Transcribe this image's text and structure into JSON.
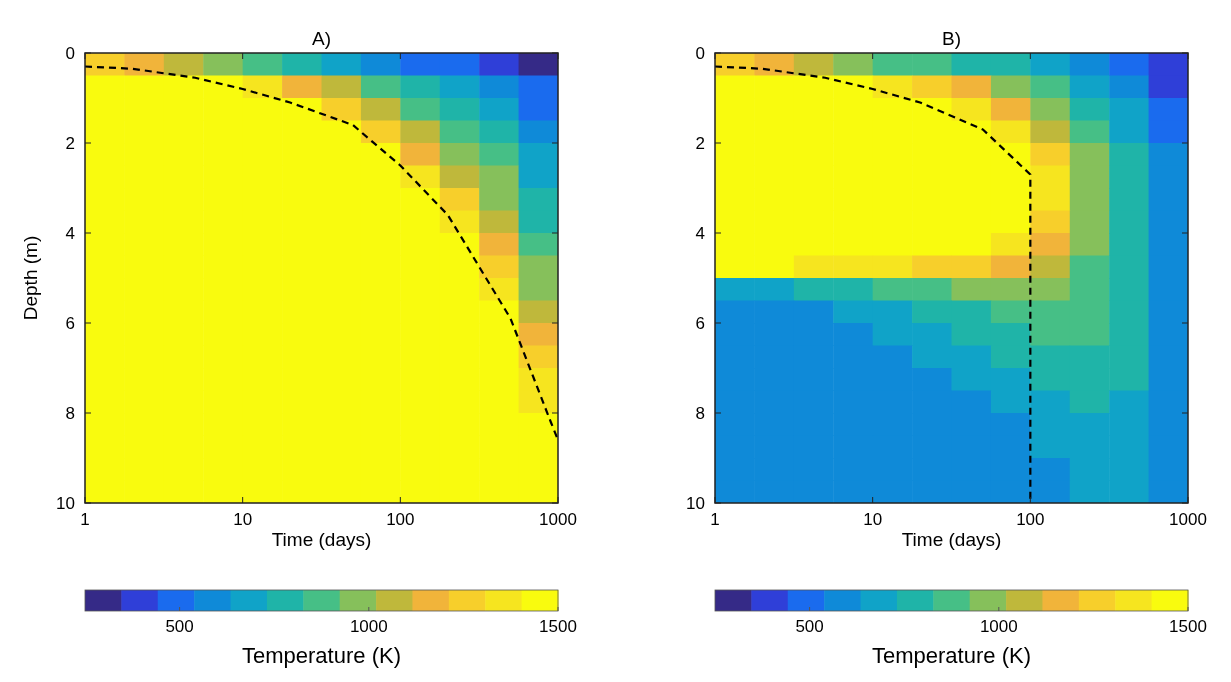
{
  "chart_data": [
    {
      "type": "heatmap",
      "title": "A)",
      "xlabel": "Time (days)",
      "ylabel": "Depth (m)",
      "clabel": "Temperature (K)",
      "log": "x",
      "xlim": [
        1,
        1000
      ],
      "xticks": [
        1,
        10,
        100,
        1000
      ],
      "ylim": [
        10,
        0
      ],
      "yticks": [
        0,
        2,
        4,
        6,
        8,
        10
      ],
      "clim": [
        250,
        1500
      ],
      "cticks": [
        500,
        1000,
        1500
      ],
      "line_style": "dashed",
      "marker": "none",
      "cells": [
        [
          1300,
          1200,
          1100,
          1000,
          900,
          800,
          700,
          600,
          500,
          450,
          400,
          300
        ],
        [
          1500,
          1500,
          1500,
          1450,
          1350,
          1200,
          1050,
          900,
          750,
          650,
          550,
          450
        ],
        [
          1500,
          1500,
          1500,
          1500,
          1500,
          1450,
          1300,
          1100,
          900,
          800,
          650,
          500
        ],
        [
          1500,
          1500,
          1500,
          1500,
          1500,
          1500,
          1450,
          1300,
          1050,
          900,
          750,
          600
        ],
        [
          1500,
          1500,
          1500,
          1500,
          1500,
          1500,
          1500,
          1450,
          1200,
          1000,
          850,
          650
        ],
        [
          1500,
          1500,
          1500,
          1500,
          1500,
          1500,
          1500,
          1500,
          1400,
          1100,
          950,
          700
        ],
        [
          1500,
          1500,
          1500,
          1500,
          1500,
          1500,
          1500,
          1500,
          1450,
          1250,
          1000,
          750
        ],
        [
          1500,
          1500,
          1500,
          1500,
          1500,
          1500,
          1500,
          1500,
          1500,
          1400,
          1100,
          800
        ],
        [
          1500,
          1500,
          1500,
          1500,
          1500,
          1500,
          1500,
          1500,
          1500,
          1450,
          1200,
          850
        ],
        [
          1500,
          1500,
          1500,
          1500,
          1500,
          1500,
          1500,
          1500,
          1500,
          1500,
          1300,
          950
        ],
        [
          1500,
          1500,
          1500,
          1500,
          1500,
          1500,
          1500,
          1500,
          1500,
          1500,
          1400,
          1000
        ],
        [
          1500,
          1500,
          1500,
          1500,
          1500,
          1500,
          1500,
          1500,
          1500,
          1500,
          1450,
          1100
        ],
        [
          1500,
          1500,
          1500,
          1500,
          1500,
          1500,
          1500,
          1500,
          1500,
          1500,
          1500,
          1200
        ],
        [
          1500,
          1500,
          1500,
          1500,
          1500,
          1500,
          1500,
          1500,
          1500,
          1500,
          1500,
          1300
        ],
        [
          1500,
          1500,
          1500,
          1500,
          1500,
          1500,
          1500,
          1500,
          1500,
          1500,
          1500,
          1350
        ],
        [
          1500,
          1500,
          1500,
          1500,
          1500,
          1500,
          1500,
          1500,
          1500,
          1500,
          1500,
          1400
        ],
        [
          1500,
          1500,
          1500,
          1500,
          1500,
          1500,
          1500,
          1500,
          1500,
          1500,
          1500,
          1450
        ],
        [
          1500,
          1500,
          1500,
          1500,
          1500,
          1500,
          1500,
          1500,
          1500,
          1500,
          1500,
          1500
        ],
        [
          1500,
          1500,
          1500,
          1500,
          1500,
          1500,
          1500,
          1500,
          1500,
          1500,
          1500,
          1500
        ],
        [
          1500,
          1500,
          1500,
          1500,
          1500,
          1500,
          1500,
          1500,
          1500,
          1500,
          1500,
          1500
        ]
      ],
      "series": [
        {
          "type": "line",
          "color": "#000000",
          "x": [
            1,
            2,
            5,
            10,
            20,
            50,
            100,
            200,
            500,
            900,
            1000
          ],
          "values": [
            0.3,
            0.35,
            0.55,
            0.8,
            1.1,
            1.6,
            2.5,
            3.6,
            5.9,
            8.2,
            8.6
          ]
        }
      ]
    },
    {
      "type": "heatmap",
      "title": "B)",
      "xlabel": "Time (days)",
      "clabel": "Temperature (K)",
      "log": "x",
      "xlim": [
        1,
        1000
      ],
      "xticks": [
        1,
        10,
        100,
        1000
      ],
      "ylim": [
        10,
        0
      ],
      "yticks": [
        0,
        2,
        4,
        6,
        8,
        10
      ],
      "clim": [
        250,
        1500
      ],
      "cticks": [
        500,
        1000,
        1500
      ],
      "line_style": "dashed",
      "marker": "none",
      "cells": [
        [
          1300,
          1200,
          1100,
          1000,
          900,
          850,
          800,
          750,
          650,
          550,
          450,
          350
        ],
        [
          1500,
          1500,
          1500,
          1450,
          1350,
          1250,
          1150,
          1000,
          850,
          700,
          550,
          400
        ],
        [
          1500,
          1500,
          1500,
          1500,
          1500,
          1450,
          1350,
          1200,
          1000,
          800,
          650,
          450
        ],
        [
          1500,
          1500,
          1500,
          1500,
          1500,
          1500,
          1450,
          1350,
          1100,
          850,
          700,
          500
        ],
        [
          1500,
          1500,
          1500,
          1500,
          1500,
          1500,
          1500,
          1450,
          1250,
          950,
          750,
          550
        ],
        [
          1500,
          1500,
          1500,
          1500,
          1500,
          1500,
          1500,
          1500,
          1350,
          1000,
          750,
          550
        ],
        [
          1500,
          1500,
          1500,
          1500,
          1500,
          1500,
          1500,
          1500,
          1350,
          1000,
          800,
          600
        ],
        [
          1500,
          1500,
          1500,
          1500,
          1500,
          1500,
          1500,
          1500,
          1300,
          1000,
          800,
          600
        ],
        [
          1500,
          1500,
          1500,
          1500,
          1500,
          1500,
          1450,
          1400,
          1200,
          950,
          800,
          600
        ],
        [
          1450,
          1450,
          1400,
          1400,
          1350,
          1300,
          1250,
          1200,
          1100,
          900,
          750,
          600
        ],
        [
          700,
          700,
          750,
          800,
          850,
          900,
          950,
          950,
          950,
          850,
          750,
          600
        ],
        [
          550,
          550,
          600,
          650,
          700,
          750,
          800,
          850,
          900,
          850,
          750,
          600
        ],
        [
          550,
          550,
          550,
          600,
          650,
          700,
          750,
          800,
          850,
          850,
          750,
          600
        ],
        [
          550,
          550,
          550,
          550,
          600,
          650,
          700,
          750,
          800,
          800,
          750,
          600
        ],
        [
          550,
          550,
          550,
          550,
          550,
          600,
          650,
          700,
          750,
          800,
          750,
          600
        ],
        [
          550,
          550,
          550,
          550,
          550,
          550,
          600,
          650,
          700,
          750,
          700,
          600
        ],
        [
          550,
          550,
          550,
          550,
          550,
          550,
          550,
          600,
          650,
          700,
          700,
          600
        ],
        [
          550,
          550,
          550,
          550,
          550,
          550,
          550,
          600,
          650,
          650,
          650,
          600
        ],
        [
          550,
          550,
          550,
          550,
          550,
          550,
          550,
          550,
          600,
          650,
          650,
          600
        ],
        [
          550,
          550,
          550,
          550,
          550,
          550,
          550,
          550,
          600,
          650,
          650,
          600
        ]
      ],
      "series": [
        {
          "type": "line",
          "color": "#000000",
          "x": [
            1,
            2,
            5,
            10,
            20,
            50,
            100,
            100
          ],
          "values": [
            0.3,
            0.35,
            0.55,
            0.8,
            1.1,
            1.7,
            2.7,
            10
          ]
        }
      ]
    }
  ]
}
